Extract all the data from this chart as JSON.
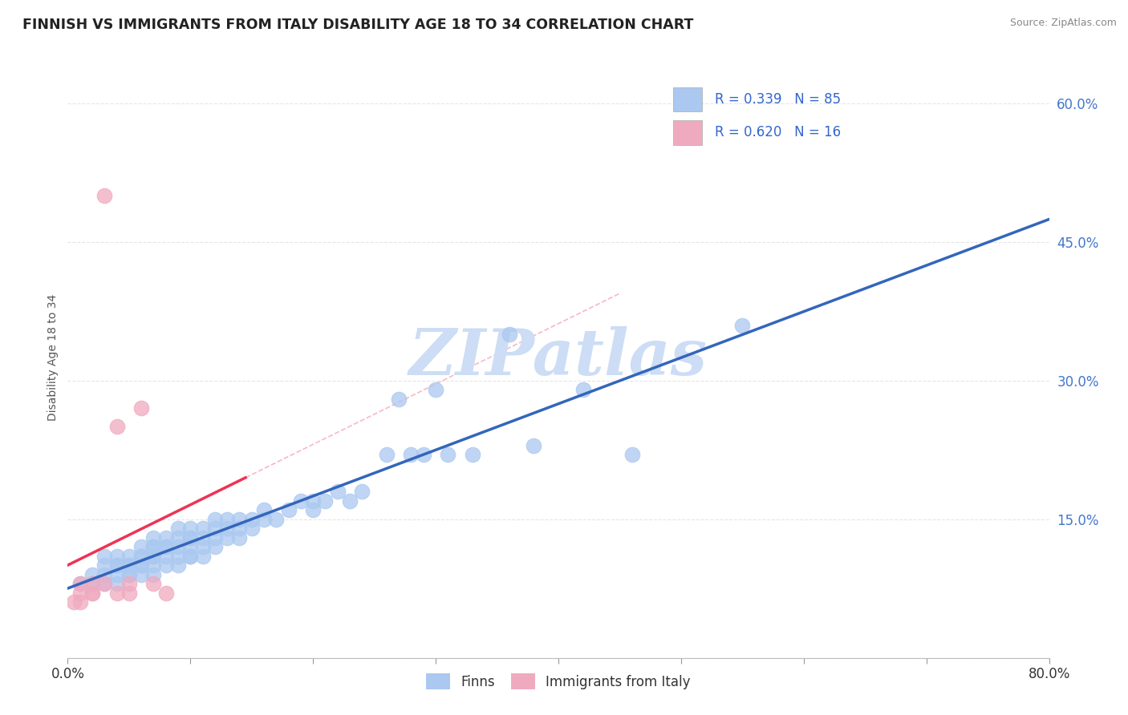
{
  "title": "FINNISH VS IMMIGRANTS FROM ITALY DISABILITY AGE 18 TO 34 CORRELATION CHART",
  "source": "Source: ZipAtlas.com",
  "ylabel": "Disability Age 18 to 34",
  "xlim": [
    0.0,
    0.8
  ],
  "ylim": [
    0.0,
    0.65
  ],
  "finns_color": "#aac8f0",
  "italy_color": "#f0aac0",
  "finns_line_color": "#3366bb",
  "italy_line_color": "#ee3355",
  "watermark": "ZIPatlas",
  "watermark_color": "#ccddf5",
  "finns_x": [
    0.01,
    0.02,
    0.02,
    0.03,
    0.03,
    0.03,
    0.03,
    0.04,
    0.04,
    0.04,
    0.04,
    0.04,
    0.05,
    0.05,
    0.05,
    0.05,
    0.05,
    0.06,
    0.06,
    0.06,
    0.06,
    0.06,
    0.06,
    0.07,
    0.07,
    0.07,
    0.07,
    0.07,
    0.07,
    0.07,
    0.08,
    0.08,
    0.08,
    0.08,
    0.08,
    0.09,
    0.09,
    0.09,
    0.09,
    0.09,
    0.1,
    0.1,
    0.1,
    0.1,
    0.1,
    0.1,
    0.11,
    0.11,
    0.11,
    0.11,
    0.12,
    0.12,
    0.12,
    0.12,
    0.13,
    0.13,
    0.13,
    0.14,
    0.14,
    0.14,
    0.15,
    0.15,
    0.16,
    0.16,
    0.17,
    0.18,
    0.19,
    0.2,
    0.2,
    0.21,
    0.22,
    0.23,
    0.24,
    0.26,
    0.27,
    0.28,
    0.29,
    0.3,
    0.31,
    0.33,
    0.36,
    0.38,
    0.42,
    0.46,
    0.55
  ],
  "finns_y": [
    0.08,
    0.08,
    0.09,
    0.08,
    0.09,
    0.1,
    0.11,
    0.08,
    0.09,
    0.1,
    0.1,
    0.11,
    0.09,
    0.09,
    0.1,
    0.1,
    0.11,
    0.09,
    0.1,
    0.1,
    0.11,
    0.11,
    0.12,
    0.09,
    0.1,
    0.11,
    0.11,
    0.12,
    0.12,
    0.13,
    0.1,
    0.11,
    0.12,
    0.12,
    0.13,
    0.1,
    0.11,
    0.12,
    0.13,
    0.14,
    0.11,
    0.11,
    0.12,
    0.13,
    0.13,
    0.14,
    0.11,
    0.12,
    0.13,
    0.14,
    0.12,
    0.13,
    0.14,
    0.15,
    0.13,
    0.14,
    0.15,
    0.13,
    0.14,
    0.15,
    0.14,
    0.15,
    0.15,
    0.16,
    0.15,
    0.16,
    0.17,
    0.16,
    0.17,
    0.17,
    0.18,
    0.17,
    0.18,
    0.22,
    0.28,
    0.22,
    0.22,
    0.29,
    0.22,
    0.22,
    0.35,
    0.23,
    0.29,
    0.22,
    0.36
  ],
  "italy_x": [
    0.005,
    0.01,
    0.01,
    0.01,
    0.02,
    0.02,
    0.02,
    0.03,
    0.03,
    0.04,
    0.04,
    0.05,
    0.05,
    0.06,
    0.07,
    0.08
  ],
  "italy_y": [
    0.06,
    0.06,
    0.07,
    0.08,
    0.07,
    0.07,
    0.08,
    0.08,
    0.5,
    0.07,
    0.25,
    0.07,
    0.08,
    0.27,
    0.08,
    0.07
  ],
  "background_color": "#ffffff",
  "grid_color": "#e0e0e0"
}
